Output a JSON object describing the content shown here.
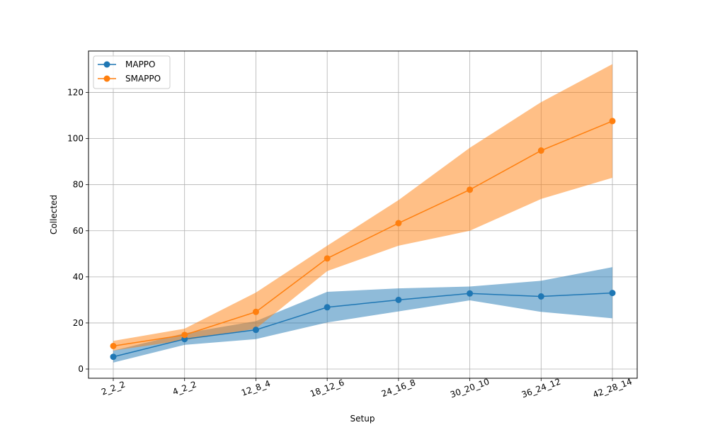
{
  "chart_data": {
    "type": "line",
    "title": "",
    "xlabel": "Setup",
    "ylabel": "Collected",
    "categories": [
      "2_2_2",
      "4_2_2",
      "12_8_4",
      "18_12_6",
      "24_16_8",
      "30_20_10",
      "36_24_12",
      "42_28_14"
    ],
    "ylim": [
      -4,
      138
    ],
    "yticks": [
      0,
      20,
      40,
      60,
      80,
      100,
      120
    ],
    "grid": true,
    "legend_position": "top-left",
    "series": [
      {
        "name": "MAPPO",
        "color": "#1f77b4",
        "values": [
          5.3,
          13.0,
          17.0,
          26.8,
          30.0,
          32.8,
          31.5,
          33.0
        ],
        "lower": [
          2.8,
          10.5,
          13.0,
          20.2,
          25.0,
          29.8,
          24.8,
          22.0
        ],
        "upper": [
          8.0,
          15.5,
          20.8,
          33.5,
          35.0,
          35.8,
          38.3,
          44.2
        ]
      },
      {
        "name": "SMAPPO",
        "color": "#ff7f0e",
        "values": [
          10.0,
          14.8,
          24.8,
          48.0,
          63.3,
          77.8,
          94.8,
          107.6
        ],
        "lower": [
          8.0,
          12.5,
          17.5,
          42.5,
          53.5,
          60.0,
          73.8,
          83.0
        ],
        "upper": [
          12.2,
          17.5,
          33.2,
          53.5,
          73.3,
          96.0,
          115.8,
          132.3
        ]
      }
    ]
  }
}
